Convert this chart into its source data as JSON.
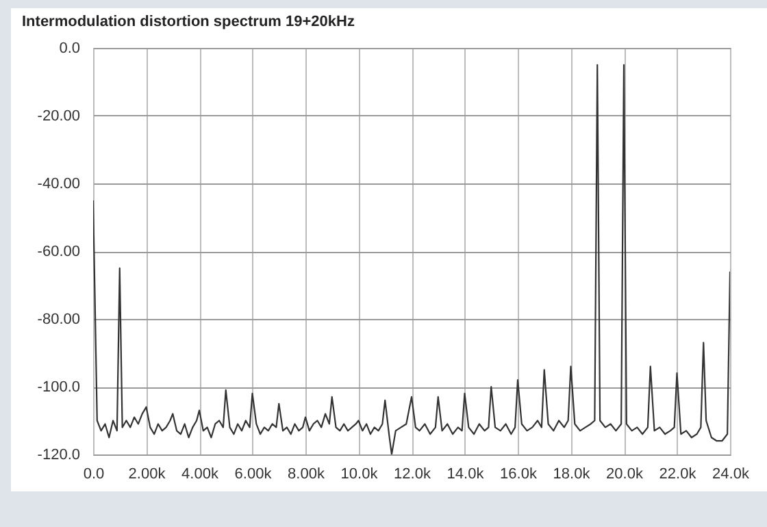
{
  "chart_data": {
    "type": "line",
    "title": "Intermodulation distortion spectrum 19+20kHz",
    "x": [
      0,
      150,
      300,
      450,
      600,
      750,
      900,
      1000,
      1100,
      1250,
      1400,
      1550,
      1700,
      1850,
      2000,
      2150,
      2300,
      2450,
      2600,
      2750,
      2900,
      3000,
      3150,
      3300,
      3450,
      3600,
      3750,
      3900,
      4000,
      4150,
      4300,
      4450,
      4600,
      4750,
      4900,
      5000,
      5150,
      5300,
      5450,
      5600,
      5750,
      5900,
      6000,
      6150,
      6300,
      6450,
      6600,
      6750,
      6900,
      7000,
      7150,
      7300,
      7450,
      7600,
      7750,
      7900,
      8000,
      8150,
      8300,
      8450,
      8600,
      8750,
      8900,
      9000,
      9150,
      9300,
      9450,
      9600,
      9750,
      9900,
      10000,
      10150,
      10300,
      10450,
      10600,
      10750,
      10900,
      11000,
      11150,
      11250,
      11400,
      11600,
      11800,
      12000,
      12150,
      12300,
      12500,
      12700,
      12900,
      13000,
      13150,
      13350,
      13550,
      13750,
      13900,
      14000,
      14150,
      14350,
      14550,
      14750,
      14900,
      15000,
      15150,
      15350,
      15550,
      15750,
      15900,
      16000,
      16150,
      16350,
      16550,
      16750,
      16900,
      17000,
      17150,
      17350,
      17550,
      17750,
      17900,
      18000,
      18150,
      18350,
      18550,
      18750,
      18900,
      19000,
      19100,
      19300,
      19500,
      19700,
      19900,
      20000,
      20100,
      20300,
      20500,
      20700,
      20900,
      21000,
      21150,
      21350,
      21550,
      21750,
      21900,
      22000,
      22150,
      22350,
      22550,
      22750,
      22900,
      23000,
      23100,
      23300,
      23500,
      23700,
      23900,
      24000
    ],
    "series": [
      {
        "color": "#333333",
        "values": [
          -45,
          -110,
          -113,
          -111,
          -115,
          -110,
          -113,
          -65,
          -112,
          -110,
          -112,
          -109,
          -111,
          -108,
          -106,
          -112,
          -114,
          -111,
          -113,
          -112,
          -110,
          -108,
          -113,
          -114,
          -111,
          -115,
          -112,
          -110,
          -107,
          -113,
          -112,
          -115,
          -111,
          -110,
          -112,
          -101,
          -112,
          -114,
          -111,
          -113,
          -110,
          -112,
          -102,
          -111,
          -114,
          -112,
          -113,
          -111,
          -112,
          -105,
          -113,
          -112,
          -114,
          -111,
          -113,
          -112,
          -109,
          -113,
          -111,
          -110,
          -112,
          -108,
          -111,
          -103,
          -112,
          -113,
          -111,
          -113,
          -112,
          -111,
          -110,
          -113,
          -111,
          -114,
          -112,
          -113,
          -111,
          -104,
          -114,
          -120,
          -113,
          -112,
          -111,
          -103,
          -112,
          -113,
          -111,
          -114,
          -112,
          -103,
          -113,
          -111,
          -114,
          -112,
          -113,
          -102,
          -112,
          -114,
          -111,
          -113,
          -112,
          -100,
          -112,
          -113,
          -111,
          -114,
          -112,
          -98,
          -111,
          -113,
          -112,
          -110,
          -112,
          -95,
          -111,
          -113,
          -110,
          -112,
          -110,
          -94,
          -111,
          -113,
          -112,
          -111,
          -110,
          -5,
          -110,
          -112,
          -111,
          -113,
          -111,
          -5,
          -111,
          -113,
          -112,
          -114,
          -112,
          -94,
          -113,
          -112,
          -114,
          -113,
          -112,
          -96,
          -114,
          -113,
          -115,
          -114,
          -112,
          -87,
          -110,
          -115,
          -116,
          -116,
          -114,
          -66
        ]
      }
    ],
    "xlim": [
      0,
      24000
    ],
    "xticks": [
      {
        "value": 0,
        "label": "0.0"
      },
      {
        "value": 2000,
        "label": "2.00k"
      },
      {
        "value": 4000,
        "label": "4.00k"
      },
      {
        "value": 6000,
        "label": "6.00k"
      },
      {
        "value": 8000,
        "label": "8.00k"
      },
      {
        "value": 10000,
        "label": "10.0k"
      },
      {
        "value": 12000,
        "label": "12.0k"
      },
      {
        "value": 14000,
        "label": "14.0k"
      },
      {
        "value": 16000,
        "label": "16.0k"
      },
      {
        "value": 18000,
        "label": "18.0k"
      },
      {
        "value": 20000,
        "label": "20.0k"
      },
      {
        "value": 22000,
        "label": "22.0k"
      },
      {
        "value": 24000,
        "label": "24.0k"
      }
    ],
    "ylim": [
      -120,
      0
    ],
    "yticks": [
      {
        "value": -120,
        "label": "-120.0"
      },
      {
        "value": -100,
        "label": "-100.0"
      },
      {
        "value": -80,
        "label": "-80.00"
      },
      {
        "value": -60,
        "label": "-60.00"
      },
      {
        "value": -40,
        "label": "-40.00"
      },
      {
        "value": -20,
        "label": "-20.00"
      },
      {
        "value": 0,
        "label": "0.0"
      }
    ],
    "grid": true
  }
}
